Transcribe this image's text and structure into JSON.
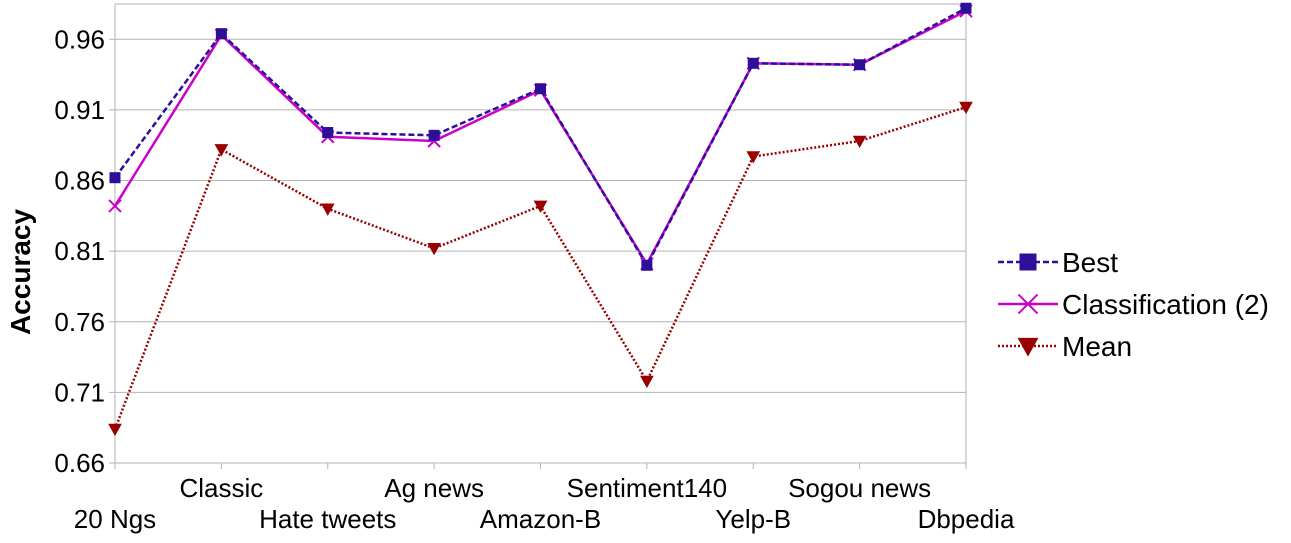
{
  "chart_data": {
    "type": "line",
    "title": "",
    "xlabel": "",
    "ylabel": "Accuracy",
    "ylim": [
      0.66,
      0.985
    ],
    "yticks": [
      "0.66",
      "0.71",
      "0.76",
      "0.81",
      "0.86",
      "0.91",
      "0.96"
    ],
    "grid": "horizontal",
    "legend_position": "right",
    "categories": [
      "20 Ngs",
      "Classic",
      "Hate tweets",
      "Ag news",
      "Amazon-B",
      "Sentiment140",
      "Yelp-B",
      "Sogou news",
      "Dbpedia"
    ],
    "series": [
      {
        "name": "Best",
        "color": "#2e0f99",
        "marker": "square",
        "line_style": "dashed",
        "values": [
          0.862,
          0.964,
          0.894,
          0.892,
          0.925,
          0.8,
          0.943,
          0.942,
          0.982
        ]
      },
      {
        "name": "Classification (2)",
        "color": "#cc00cc",
        "marker": "x",
        "line_style": "solid",
        "values": [
          0.842,
          0.963,
          0.891,
          0.888,
          0.924,
          0.801,
          0.943,
          0.942,
          0.98
        ]
      },
      {
        "name": "Mean",
        "color": "#990000",
        "marker": "triangle-down",
        "line_style": "dotted",
        "values": [
          0.684,
          0.882,
          0.84,
          0.812,
          0.842,
          0.718,
          0.877,
          0.888,
          0.912
        ]
      }
    ]
  }
}
